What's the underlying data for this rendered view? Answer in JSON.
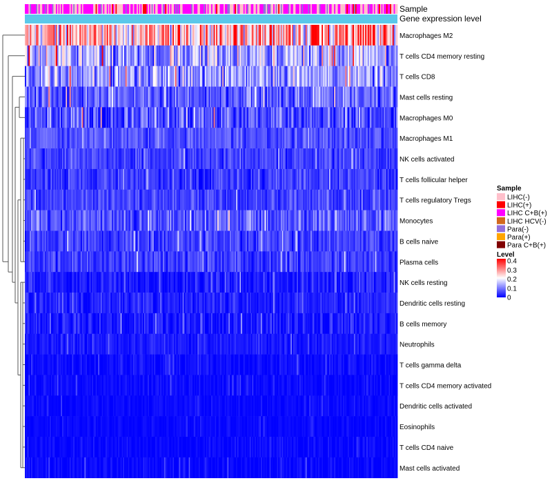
{
  "chart_data": {
    "type": "heatmap",
    "title": "",
    "xlabel": "",
    "ylabel": "",
    "annotation_labels": [
      "Sample",
      "Gene expression level"
    ],
    "rows": [
      {
        "name": "Macrophages M2",
        "mean": 0.27,
        "spread": 0.13
      },
      {
        "name": "T cells CD4 memory resting",
        "mean": 0.13,
        "spread": 0.09
      },
      {
        "name": "T cells CD8",
        "mean": 0.12,
        "spread": 0.08
      },
      {
        "name": "Mast cells resting",
        "mean": 0.07,
        "spread": 0.06
      },
      {
        "name": "Macrophages M0",
        "mean": 0.06,
        "spread": 0.07
      },
      {
        "name": "Macrophages M1",
        "mean": 0.06,
        "spread": 0.035
      },
      {
        "name": "NK cells activated",
        "mean": 0.05,
        "spread": 0.035
      },
      {
        "name": "T cells follicular helper",
        "mean": 0.045,
        "spread": 0.035
      },
      {
        "name": "T cells regulatory  Tregs",
        "mean": 0.05,
        "spread": 0.035
      },
      {
        "name": "Monocytes",
        "mean": 0.07,
        "spread": 0.05
      },
      {
        "name": "B cells naive",
        "mean": 0.05,
        "spread": 0.04
      },
      {
        "name": "Plasma cells",
        "mean": 0.045,
        "spread": 0.035
      },
      {
        "name": "NK cells resting",
        "mean": 0.02,
        "spread": 0.03
      },
      {
        "name": "Dendritic cells resting",
        "mean": 0.025,
        "spread": 0.025
      },
      {
        "name": "B cells memory",
        "mean": 0.02,
        "spread": 0.03
      },
      {
        "name": "Neutrophils",
        "mean": 0.02,
        "spread": 0.02
      },
      {
        "name": "T cells gamma delta",
        "mean": 0.01,
        "spread": 0.02
      },
      {
        "name": "T cells CD4 memory activated",
        "mean": 0.008,
        "spread": 0.015
      },
      {
        "name": "Dendritic cells activated",
        "mean": 0.006,
        "spread": 0.012
      },
      {
        "name": "Eosinophils",
        "mean": 0.005,
        "spread": 0.01
      },
      {
        "name": "T cells CD4 naive",
        "mean": 0.006,
        "spread": 0.015
      },
      {
        "name": "Mast cells activated",
        "mean": 0.006,
        "spread": 0.02
      }
    ],
    "n_samples": 300,
    "sample_mix": [
      {
        "group": "LIHC(-)",
        "weight": 0.42
      },
      {
        "group": "LIHC C+B(+)",
        "weight": 0.46
      },
      {
        "group": "LIHC(+)",
        "weight": 0.03
      },
      {
        "group": "Para(-)",
        "weight": 0.09
      }
    ],
    "expression_level_color": "#5bc8ea",
    "legend_sample": {
      "title": "Sample",
      "entries": [
        {
          "label": "LIHC(-)",
          "color": "#ffc0cb"
        },
        {
          "label": "LIHC(+)",
          "color": "#ff0000"
        },
        {
          "label": "LIHC C+B(+)",
          "color": "#ff00ff"
        },
        {
          "label": "LIHC HCV(-)",
          "color": "#d2691e"
        },
        {
          "label": "Para(-)",
          "color": "#9370db"
        },
        {
          "label": "Para(+)",
          "color": "#ffa500"
        },
        {
          "label": "Para C+B(+)",
          "color": "#800000"
        }
      ]
    },
    "legend_level": {
      "title": "Level",
      "ticks": [
        "0.4",
        "0.3",
        "0.2",
        "0.1",
        "0"
      ],
      "range": [
        0,
        0.4
      ],
      "colors": [
        "#0000ff",
        "#ffffff",
        "#ff0000"
      ]
    }
  }
}
